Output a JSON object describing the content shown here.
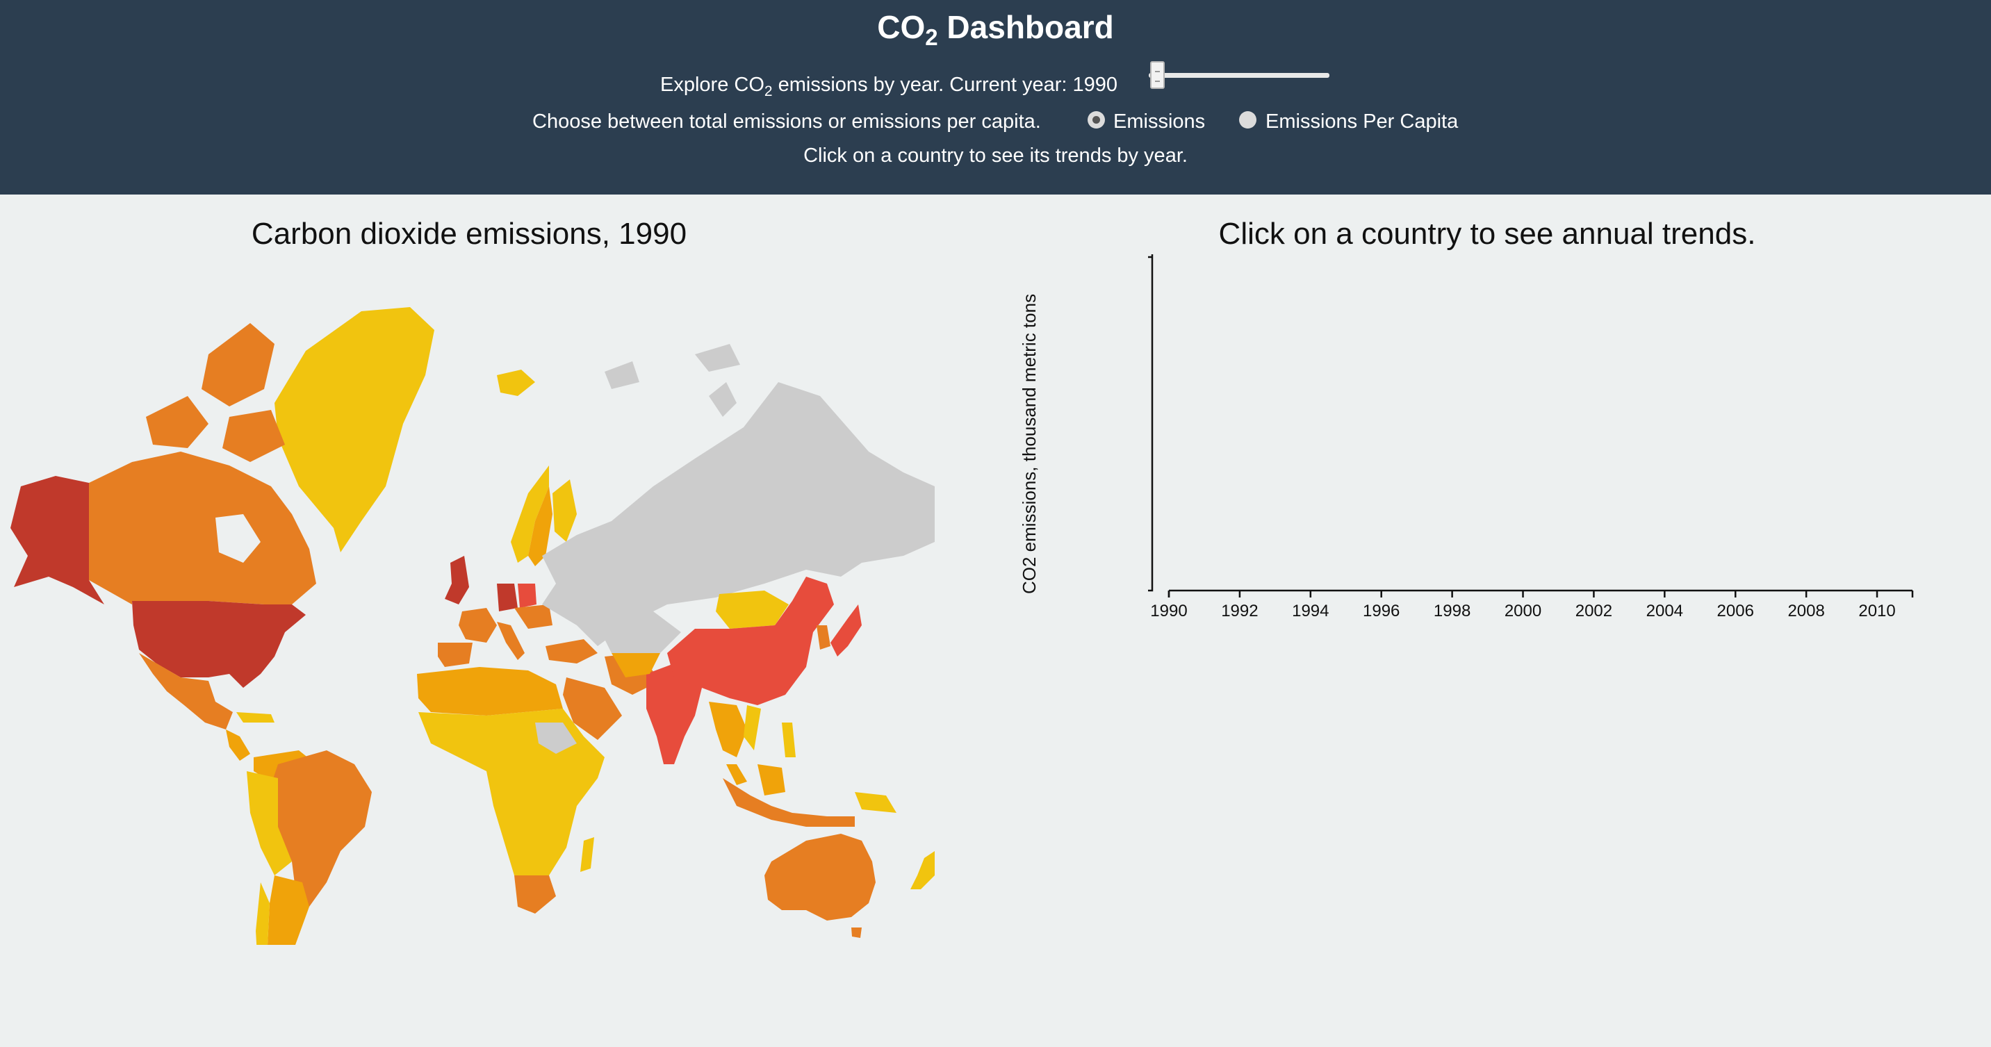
{
  "header": {
    "title_main": "CO",
    "title_sub": "2",
    "title_rest": " Dashboard",
    "year_prefix": "Explore CO",
    "year_sub": "2",
    "year_suffix": " emissions by year. Current year: 1990",
    "slider_value": 1990,
    "slider_min": 1990,
    "slider_max": 2011,
    "choose_text": "Choose between total emissions or emissions per capita.",
    "radio_options": [
      {
        "label": "Emissions",
        "checked": true
      },
      {
        "label": "Emissions Per Capita",
        "checked": false
      }
    ],
    "instructions": "Click on a country to see its trends by year."
  },
  "map": {
    "title": "Carbon dioxide emissions, 1990",
    "colors": {
      "very_high": "#c0392b",
      "high": "#e74c3c",
      "mid_high": "#e67e22",
      "mid": "#f0a30a",
      "low": "#f1c40f",
      "no_data": "#cccccc"
    }
  },
  "trend": {
    "title": "Click on a country to see annual trends.",
    "y_label": "CO2 emissions, thousand metric tons",
    "x_ticks": [
      "1990",
      "1992",
      "1994",
      "1996",
      "1998",
      "2000",
      "2002",
      "2004",
      "2006",
      "2008",
      "2010"
    ]
  }
}
